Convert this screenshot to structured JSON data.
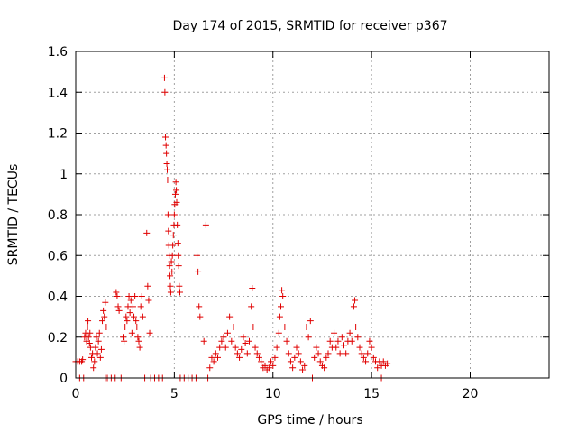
{
  "chart_data": {
    "type": "scatter",
    "title": "Day 174 of 2015, SRMTID for receiver p367",
    "xlabel": "GPS time / hours",
    "ylabel": "SRMTID / TECUs",
    "xlim": [
      0,
      24
    ],
    "ylim": [
      0,
      1.6
    ],
    "x_ticks": [
      0,
      5,
      10,
      15,
      20
    ],
    "x_tick_labels": [
      "0",
      "5",
      "10",
      "15",
      "20"
    ],
    "y_ticks": [
      0,
      0.2,
      0.4,
      0.6,
      0.8,
      1.0,
      1.2,
      1.4,
      1.6
    ],
    "y_tick_labels": [
      "0",
      "0.2",
      "0.4",
      "0.6",
      "0.8",
      "1",
      "1.2",
      "1.4",
      "1.6"
    ],
    "grid": true,
    "marker": "+",
    "colors": {
      "points": "#e00000",
      "grid": "#a0a0a0",
      "axes": "#000000"
    },
    "series": [
      {
        "name": "SRMTID",
        "points": [
          [
            0.0,
            0.08
          ],
          [
            0.1,
            0.08
          ],
          [
            0.2,
            0.08
          ],
          [
            0.3,
            0.08
          ],
          [
            0.2,
            0.0
          ],
          [
            0.4,
            0.0
          ],
          [
            0.35,
            0.09
          ],
          [
            0.45,
            0.2
          ],
          [
            0.5,
            0.22
          ],
          [
            0.55,
            0.18
          ],
          [
            0.6,
            0.25
          ],
          [
            0.62,
            0.28
          ],
          [
            0.65,
            0.2
          ],
          [
            0.7,
            0.17
          ],
          [
            0.72,
            0.22
          ],
          [
            0.75,
            0.15
          ],
          [
            0.8,
            0.1
          ],
          [
            0.85,
            0.12
          ],
          [
            0.9,
            0.05
          ],
          [
            0.95,
            0.08
          ],
          [
            1.0,
            0.15
          ],
          [
            1.05,
            0.2
          ],
          [
            1.1,
            0.12
          ],
          [
            1.15,
            0.18
          ],
          [
            1.2,
            0.22
          ],
          [
            1.25,
            0.1
          ],
          [
            1.3,
            0.14
          ],
          [
            1.35,
            0.28
          ],
          [
            1.4,
            0.33
          ],
          [
            1.45,
            0.3
          ],
          [
            1.5,
            0.37
          ],
          [
            1.55,
            0.25
          ],
          [
            1.6,
            0.0
          ],
          [
            1.5,
            0.0
          ],
          [
            1.8,
            0.0
          ],
          [
            2.0,
            0.0
          ],
          [
            2.05,
            0.42
          ],
          [
            2.1,
            0.4
          ],
          [
            2.15,
            0.35
          ],
          [
            2.2,
            0.33
          ],
          [
            2.3,
            0.0
          ],
          [
            2.4,
            0.2
          ],
          [
            2.45,
            0.18
          ],
          [
            2.5,
            0.25
          ],
          [
            2.55,
            0.3
          ],
          [
            2.6,
            0.28
          ],
          [
            2.65,
            0.35
          ],
          [
            2.7,
            0.4
          ],
          [
            2.75,
            0.32
          ],
          [
            2.8,
            0.38
          ],
          [
            2.85,
            0.22
          ],
          [
            2.9,
            0.35
          ],
          [
            2.95,
            0.3
          ],
          [
            3.0,
            0.4
          ],
          [
            3.05,
            0.28
          ],
          [
            3.1,
            0.25
          ],
          [
            3.15,
            0.2
          ],
          [
            3.2,
            0.18
          ],
          [
            3.25,
            0.15
          ],
          [
            3.3,
            0.35
          ],
          [
            3.35,
            0.4
          ],
          [
            3.4,
            0.3
          ],
          [
            3.5,
            0.0
          ],
          [
            3.6,
            0.71
          ],
          [
            3.65,
            0.45
          ],
          [
            3.7,
            0.38
          ],
          [
            3.75,
            0.22
          ],
          [
            3.8,
            0.0
          ],
          [
            4.0,
            0.0
          ],
          [
            4.2,
            0.0
          ],
          [
            4.4,
            0.0
          ],
          [
            4.5,
            1.47
          ],
          [
            4.52,
            1.4
          ],
          [
            4.55,
            1.18
          ],
          [
            4.58,
            1.14
          ],
          [
            4.6,
            1.1
          ],
          [
            4.62,
            1.05
          ],
          [
            4.64,
            1.02
          ],
          [
            4.66,
            0.97
          ],
          [
            4.68,
            0.8
          ],
          [
            4.7,
            0.72
          ],
          [
            4.72,
            0.65
          ],
          [
            4.74,
            0.6
          ],
          [
            4.76,
            0.55
          ],
          [
            4.78,
            0.5
          ],
          [
            4.8,
            0.45
          ],
          [
            4.82,
            0.42
          ],
          [
            4.85,
            0.57
          ],
          [
            4.88,
            0.52
          ],
          [
            4.9,
            0.6
          ],
          [
            4.92,
            0.65
          ],
          [
            4.95,
            0.7
          ],
          [
            4.98,
            0.75
          ],
          [
            5.0,
            0.8
          ],
          [
            5.02,
            0.85
          ],
          [
            5.05,
            0.9
          ],
          [
            5.08,
            0.96
          ],
          [
            5.1,
            0.92
          ],
          [
            5.12,
            0.86
          ],
          [
            5.15,
            0.75
          ],
          [
            5.18,
            0.66
          ],
          [
            5.2,
            0.6
          ],
          [
            5.22,
            0.55
          ],
          [
            5.25,
            0.45
          ],
          [
            5.28,
            0.42
          ],
          [
            5.3,
            0.0
          ],
          [
            5.5,
            0.0
          ],
          [
            5.7,
            0.0
          ],
          [
            5.9,
            0.0
          ],
          [
            6.1,
            0.0
          ],
          [
            6.15,
            0.6
          ],
          [
            6.2,
            0.52
          ],
          [
            6.25,
            0.35
          ],
          [
            6.3,
            0.3
          ],
          [
            6.5,
            0.18
          ],
          [
            6.6,
            0.75
          ],
          [
            6.7,
            0.0
          ],
          [
            6.8,
            0.05
          ],
          [
            6.9,
            0.1
          ],
          [
            7.0,
            0.08
          ],
          [
            7.1,
            0.12
          ],
          [
            7.2,
            0.1
          ],
          [
            7.3,
            0.15
          ],
          [
            7.4,
            0.18
          ],
          [
            7.5,
            0.2
          ],
          [
            7.6,
            0.15
          ],
          [
            7.7,
            0.22
          ],
          [
            7.8,
            0.3
          ],
          [
            7.9,
            0.18
          ],
          [
            8.0,
            0.25
          ],
          [
            8.1,
            0.15
          ],
          [
            8.2,
            0.12
          ],
          [
            8.3,
            0.1
          ],
          [
            8.4,
            0.14
          ],
          [
            8.5,
            0.2
          ],
          [
            8.6,
            0.17
          ],
          [
            8.7,
            0.12
          ],
          [
            8.8,
            0.18
          ],
          [
            8.9,
            0.35
          ],
          [
            8.95,
            0.44
          ],
          [
            9.0,
            0.25
          ],
          [
            9.1,
            0.15
          ],
          [
            9.2,
            0.12
          ],
          [
            9.3,
            0.1
          ],
          [
            9.4,
            0.08
          ],
          [
            9.5,
            0.05
          ],
          [
            9.6,
            0.06
          ],
          [
            9.7,
            0.04
          ],
          [
            9.8,
            0.05
          ],
          [
            9.9,
            0.08
          ],
          [
            10.0,
            0.06
          ],
          [
            10.1,
            0.1
          ],
          [
            10.2,
            0.15
          ],
          [
            10.3,
            0.22
          ],
          [
            10.35,
            0.3
          ],
          [
            10.4,
            0.35
          ],
          [
            10.45,
            0.43
          ],
          [
            10.5,
            0.4
          ],
          [
            10.6,
            0.25
          ],
          [
            10.7,
            0.18
          ],
          [
            10.8,
            0.12
          ],
          [
            10.9,
            0.08
          ],
          [
            11.0,
            0.05
          ],
          [
            11.1,
            0.1
          ],
          [
            11.2,
            0.15
          ],
          [
            11.3,
            0.12
          ],
          [
            11.4,
            0.08
          ],
          [
            11.5,
            0.04
          ],
          [
            11.6,
            0.06
          ],
          [
            11.7,
            0.25
          ],
          [
            11.8,
            0.2
          ],
          [
            11.9,
            0.28
          ],
          [
            12.0,
            0.0
          ],
          [
            12.1,
            0.1
          ],
          [
            12.2,
            0.15
          ],
          [
            12.3,
            0.12
          ],
          [
            12.4,
            0.08
          ],
          [
            12.5,
            0.06
          ],
          [
            12.6,
            0.05
          ],
          [
            12.7,
            0.1
          ],
          [
            12.8,
            0.12
          ],
          [
            12.9,
            0.18
          ],
          [
            13.0,
            0.15
          ],
          [
            13.1,
            0.22
          ],
          [
            13.2,
            0.15
          ],
          [
            13.3,
            0.18
          ],
          [
            13.4,
            0.12
          ],
          [
            13.5,
            0.2
          ],
          [
            13.6,
            0.16
          ],
          [
            13.7,
            0.12
          ],
          [
            13.8,
            0.18
          ],
          [
            13.9,
            0.22
          ],
          [
            14.0,
            0.18
          ],
          [
            14.1,
            0.35
          ],
          [
            14.15,
            0.38
          ],
          [
            14.2,
            0.25
          ],
          [
            14.3,
            0.2
          ],
          [
            14.4,
            0.15
          ],
          [
            14.5,
            0.12
          ],
          [
            14.6,
            0.1
          ],
          [
            14.7,
            0.08
          ],
          [
            14.8,
            0.12
          ],
          [
            14.9,
            0.18
          ],
          [
            15.0,
            0.15
          ],
          [
            15.1,
            0.1
          ],
          [
            15.2,
            0.08
          ],
          [
            15.3,
            0.05
          ],
          [
            15.4,
            0.08
          ],
          [
            15.5,
            0.06
          ],
          [
            15.6,
            0.08
          ],
          [
            15.7,
            0.06
          ],
          [
            15.8,
            0.07
          ],
          [
            15.5,
            0.0
          ]
        ]
      }
    ]
  }
}
